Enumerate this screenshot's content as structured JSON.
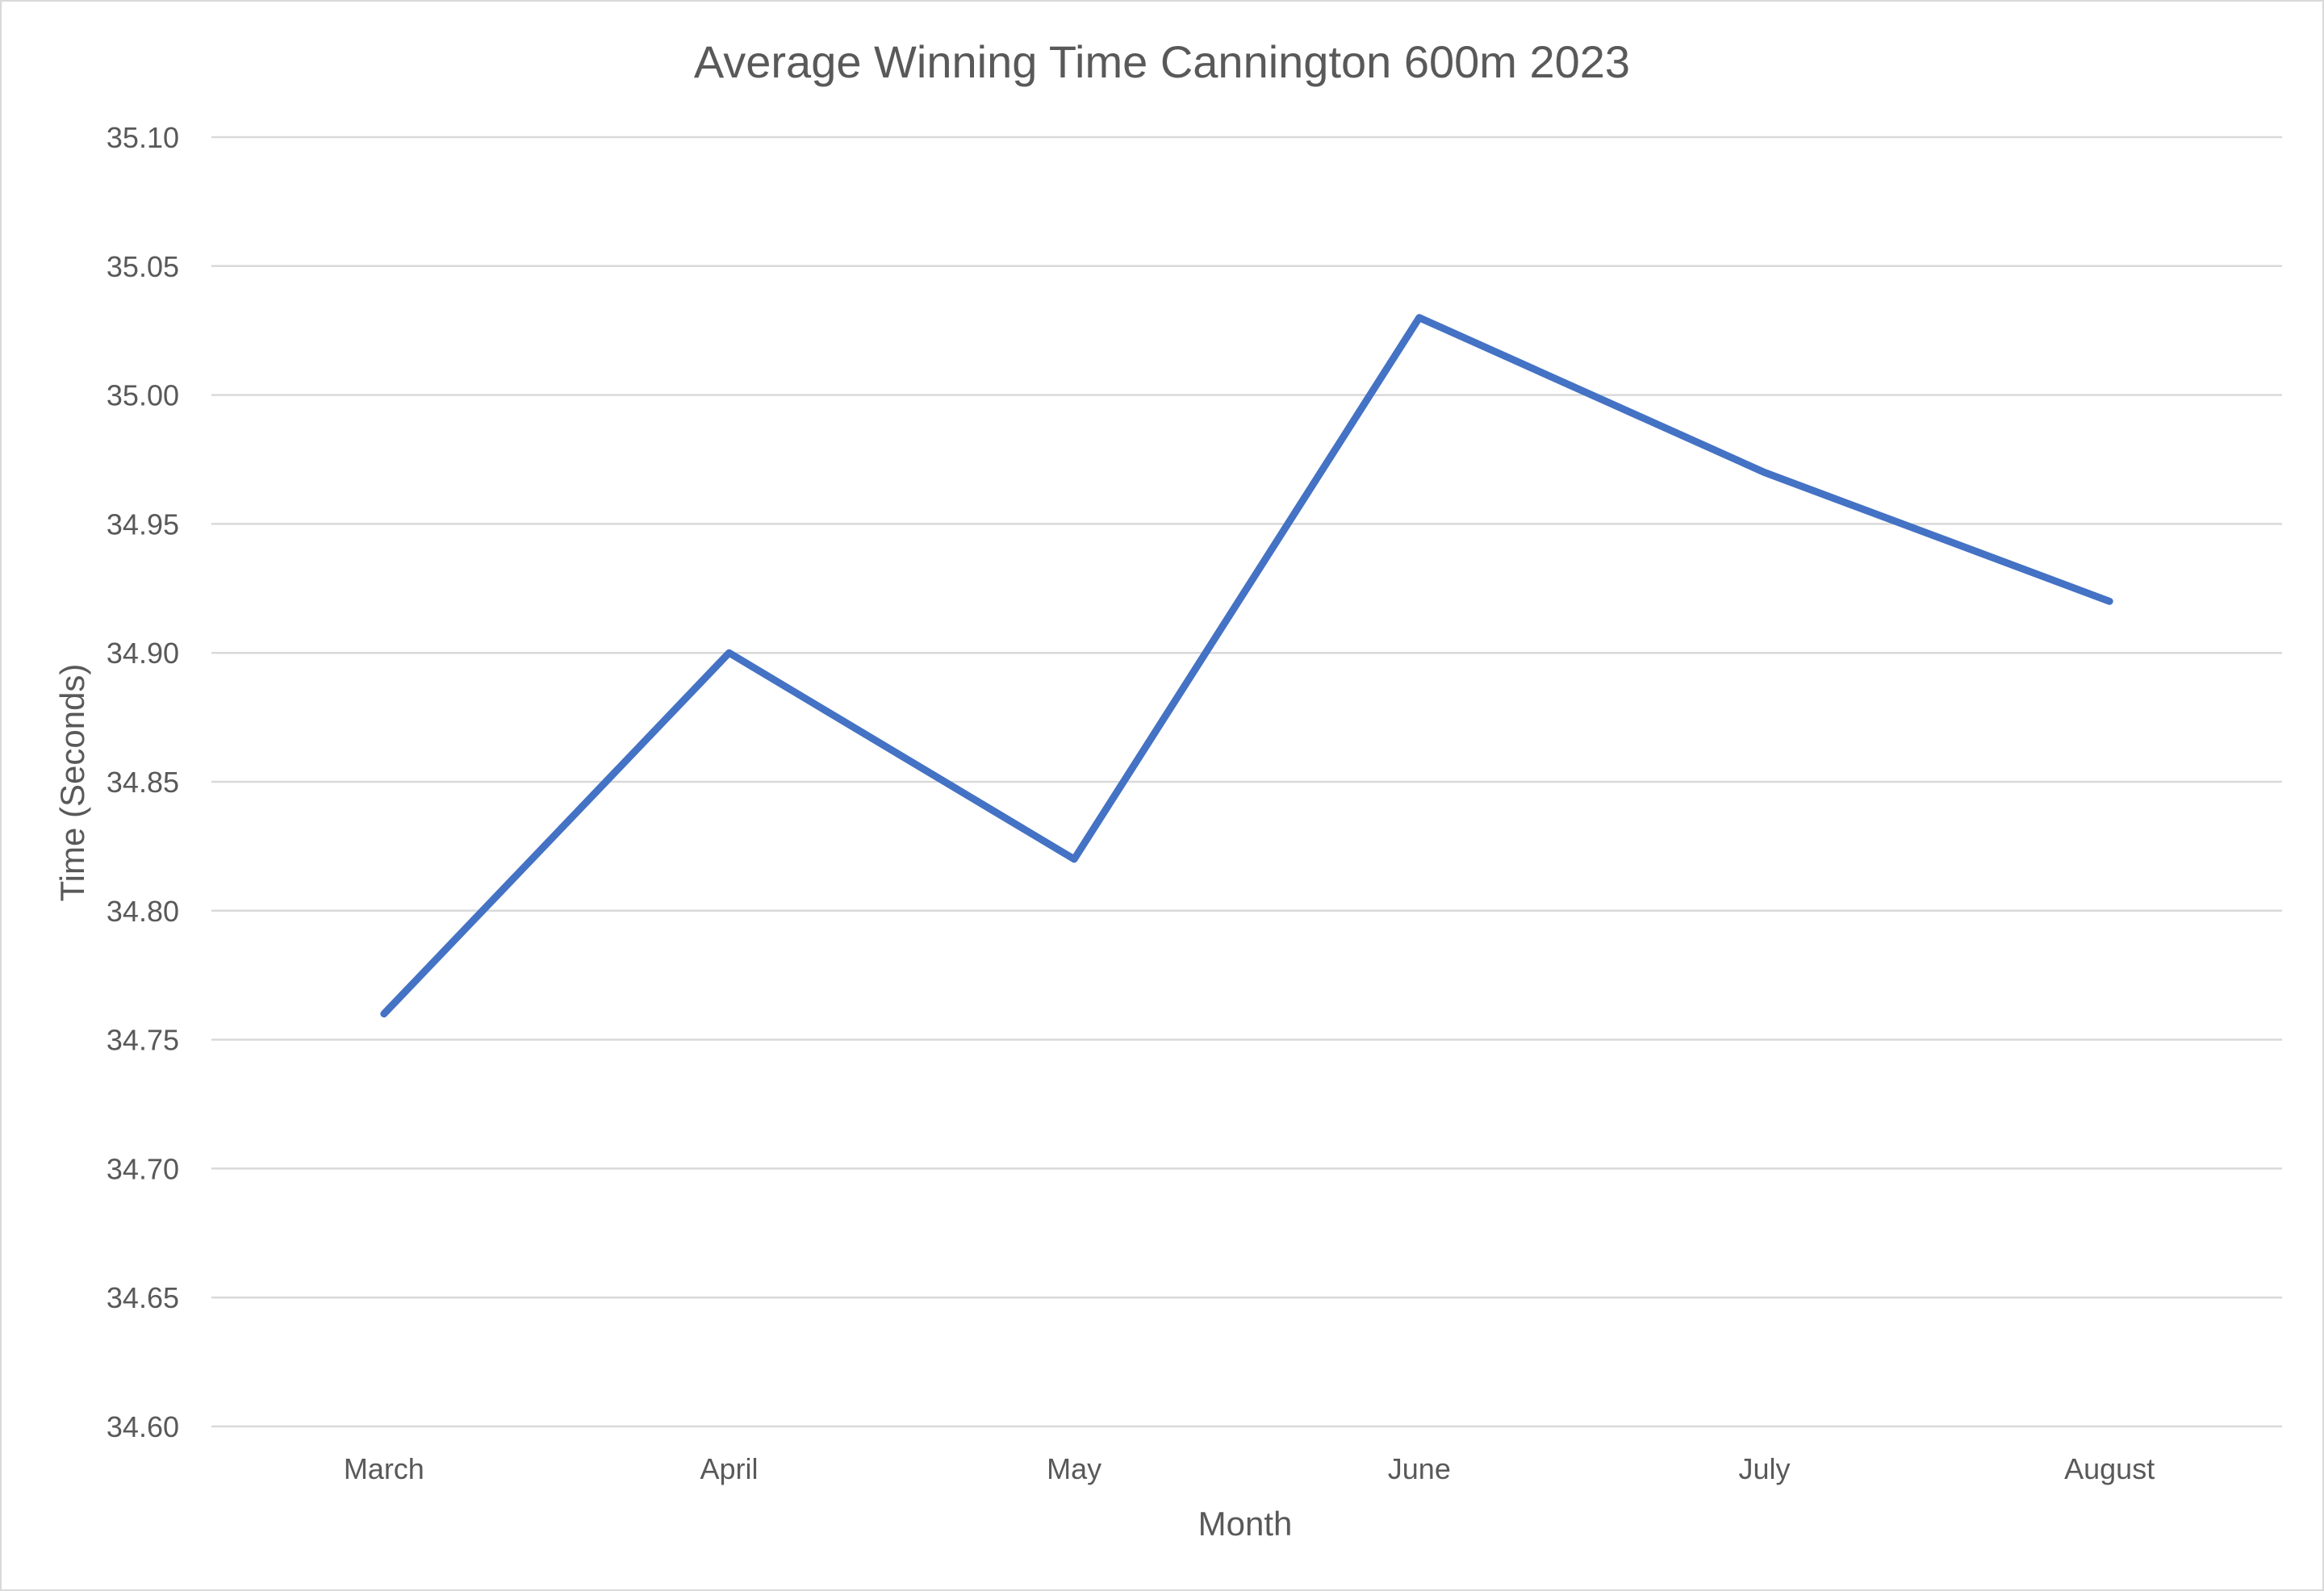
{
  "chart_data": {
    "type": "line",
    "title": "Average Winning Time Cannington 600m 2023",
    "xlabel": "Month",
    "ylabel": "Time (Seconds)",
    "categories": [
      "March",
      "April",
      "May",
      "June",
      "July",
      "August"
    ],
    "series": [
      {
        "values": [
          34.76,
          34.9,
          34.82,
          35.03,
          34.97,
          34.92
        ],
        "color": "#4472c4"
      }
    ],
    "ylim": [
      34.6,
      35.1
    ],
    "ytick_step": 0.05,
    "yticks": [
      "34.60",
      "34.65",
      "34.70",
      "34.75",
      "34.80",
      "34.85",
      "34.90",
      "34.95",
      "35.00",
      "35.05",
      "35.10"
    ],
    "grid": true,
    "legend": false,
    "gridline_color": "#d9d9d9",
    "text_color": "#595959"
  }
}
